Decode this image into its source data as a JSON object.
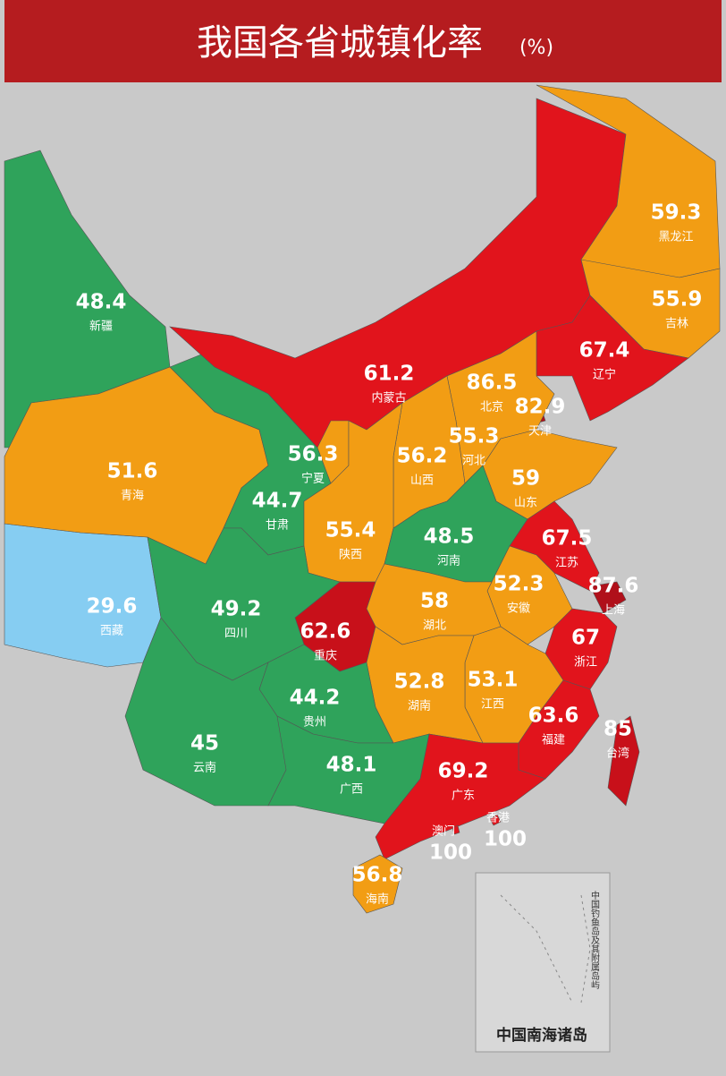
{
  "header": {
    "title": "我国各省城镇化率",
    "unit": "(%)"
  },
  "regions": [
    {
      "name": "新疆",
      "value": 48.4,
      "color": "#2fa35b"
    },
    {
      "name": "西藏",
      "value": 29.6,
      "color": "#86cdf2"
    },
    {
      "name": "青海",
      "value": 51.6,
      "color": "#f29d14"
    },
    {
      "name": "甘肃",
      "value": 44.7,
      "color": "#2fa35b"
    },
    {
      "name": "内蒙古",
      "value": 61.2,
      "color": "#e1141c"
    },
    {
      "name": "黑龙江",
      "value": 59.3,
      "color": "#f29d14"
    },
    {
      "name": "吉林",
      "value": 55.9,
      "color": "#f29d14"
    },
    {
      "name": "辽宁",
      "value": 67.4,
      "color": "#e1141c"
    },
    {
      "name": "北京",
      "value": 86.5,
      "color": "#b0101a"
    },
    {
      "name": "天津",
      "value": 82.9,
      "color": "#b0101a"
    },
    {
      "name": "河北",
      "value": 55.3,
      "color": "#f29d14"
    },
    {
      "name": "山西",
      "value": 56.2,
      "color": "#f29d14"
    },
    {
      "name": "宁夏",
      "value": 56.3,
      "color": "#f29d14"
    },
    {
      "name": "陕西",
      "value": 55.4,
      "color": "#f29d14"
    },
    {
      "name": "山东",
      "value": 59,
      "color": "#f29d14"
    },
    {
      "name": "河南",
      "value": 48.5,
      "color": "#2fa35b"
    },
    {
      "name": "江苏",
      "value": 67.5,
      "color": "#e1141c"
    },
    {
      "name": "上海",
      "value": 87.6,
      "color": "#b0101a"
    },
    {
      "name": "安徽",
      "value": 52.3,
      "color": "#f29d14"
    },
    {
      "name": "湖北",
      "value": 58,
      "color": "#f29d14"
    },
    {
      "name": "重庆",
      "value": 62.6,
      "color": "#c8101a"
    },
    {
      "name": "四川",
      "value": 49.2,
      "color": "#2fa35b"
    },
    {
      "name": "浙江",
      "value": 67,
      "color": "#e1141c"
    },
    {
      "name": "江西",
      "value": 53.1,
      "color": "#f29d14"
    },
    {
      "name": "湖南",
      "value": 52.8,
      "color": "#f29d14"
    },
    {
      "name": "福建",
      "value": 63.6,
      "color": "#e1141c"
    },
    {
      "name": "贵州",
      "value": 44.2,
      "color": "#2fa35b"
    },
    {
      "name": "云南",
      "value": 45,
      "color": "#2fa35b"
    },
    {
      "name": "广西",
      "value": 48.1,
      "color": "#2fa35b"
    },
    {
      "name": "广东",
      "value": 69.2,
      "color": "#e1141c"
    },
    {
      "name": "台湾",
      "value": 85,
      "color": "#c8101a"
    },
    {
      "name": "海南",
      "value": 56.8,
      "color": "#f29d14"
    },
    {
      "name": "香港",
      "value": 100,
      "color": "#e1141c"
    },
    {
      "name": "澳门",
      "value": 100,
      "color": "#e1141c"
    }
  ],
  "inset": {
    "title": "中国南海诸岛",
    "note": "中国钓鱼岛及其附属岛屿"
  }
}
